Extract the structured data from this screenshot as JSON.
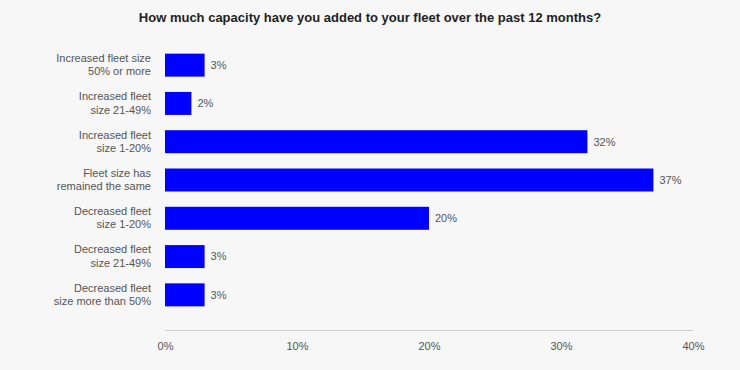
{
  "chart_data": {
    "type": "bar",
    "orientation": "horizontal",
    "title": "How much capacity have you added to your fleet over the past 12 months?",
    "categories": [
      "Increased fleet size\n50% or more",
      "Increased fleet\nsize 21-49%",
      "Increased fleet\nsize 1-20%",
      "Fleet size has\nremained the same",
      "Decreased fleet\nsize 1-20%",
      "Decreased fleet\nsize 21-49%",
      "Decreased fleet\nsize more than 50%"
    ],
    "values": [
      3,
      2,
      32,
      37,
      20,
      3,
      3
    ],
    "value_labels": [
      "3%",
      "2%",
      "32%",
      "37%",
      "20%",
      "3%",
      "3%"
    ],
    "data_labels": true,
    "color": "#0000ff",
    "xlim": [
      0,
      40
    ],
    "xticks": [
      {
        "value": 0,
        "label": "0%"
      },
      {
        "value": 10,
        "label": "10%"
      },
      {
        "value": 20,
        "label": "20%"
      },
      {
        "value": 30,
        "label": "30%"
      },
      {
        "value": 40,
        "label": "40%"
      }
    ],
    "grid": false
  }
}
